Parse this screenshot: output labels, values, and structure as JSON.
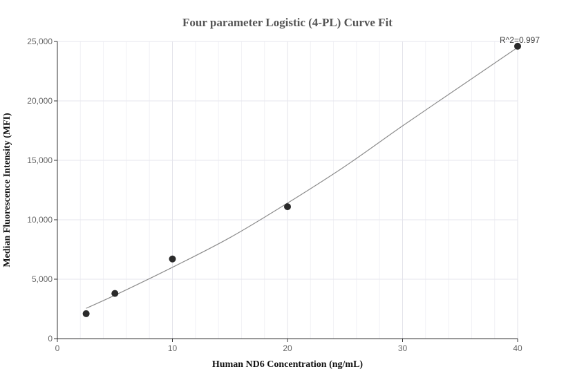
{
  "chart_data": {
    "type": "scatter",
    "title": "Four parameter Logistic (4-PL) Curve Fit",
    "xlabel": "Human ND6 Concentration (ng/mL)",
    "ylabel": "Median Fluorescence Intensity (MFI)",
    "xlim": [
      0,
      40
    ],
    "ylim": [
      0,
      25000
    ],
    "x_ticks": [
      0,
      10,
      20,
      30,
      40
    ],
    "x_tick_labels": [
      "0",
      "10",
      "20",
      "30",
      "40"
    ],
    "y_ticks": [
      0,
      5000,
      10000,
      15000,
      20000,
      25000
    ],
    "y_tick_labels": [
      "0",
      "5,000",
      "10,000",
      "15,000",
      "20,000",
      "25,000"
    ],
    "grid": true,
    "series": [
      {
        "points": [
          {
            "x": 2.5,
            "y": 2100
          },
          {
            "x": 5,
            "y": 3800
          },
          {
            "x": 10,
            "y": 6700
          },
          {
            "x": 20,
            "y": 11100
          },
          {
            "x": 40,
            "y": 24600
          }
        ]
      }
    ],
    "fit_curve": [
      {
        "x": 2.5,
        "y": 2550
      },
      {
        "x": 5,
        "y": 3650
      },
      {
        "x": 10,
        "y": 6000
      },
      {
        "x": 15,
        "y": 8500
      },
      {
        "x": 20,
        "y": 11400
      },
      {
        "x": 25,
        "y": 14500
      },
      {
        "x": 30,
        "y": 17900
      },
      {
        "x": 35,
        "y": 21200
      },
      {
        "x": 40,
        "y": 24500
      }
    ],
    "annotation": "R^2=0.997",
    "colors": {
      "points": "#2b2b2b",
      "curve": "#8c8c8c",
      "grid": "#e6e6ee",
      "axis": "#333333"
    }
  }
}
